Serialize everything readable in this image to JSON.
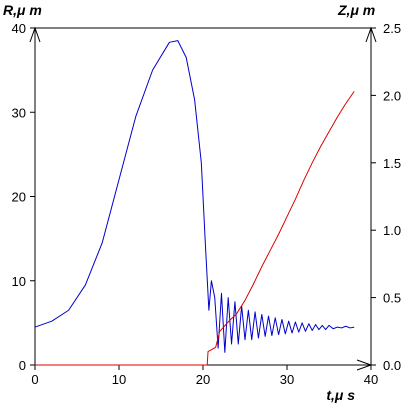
{
  "chart_data": {
    "type": "line",
    "title": "",
    "xlabel": "t,μ s",
    "ylabel_left": "R,μ m",
    "ylabel_right": "Z,μ m",
    "xlim": [
      0,
      40
    ],
    "ylim_left": [
      0,
      40
    ],
    "ylim_right": [
      0,
      2.5
    ],
    "x_ticks": [
      "0",
      "10",
      "20",
      "30",
      "40"
    ],
    "y_left_ticks": [
      "0",
      "10",
      "20",
      "30",
      "40"
    ],
    "y_right_ticks": [
      "0.0",
      "0.5",
      "1.0",
      "1.5",
      "2.0",
      "2.5"
    ],
    "grid": false,
    "legend": "none",
    "series": [
      {
        "color": "#0000cc",
        "axis": "left",
        "x": [
          0,
          2,
          4,
          6,
          8,
          10,
          12,
          14,
          16,
          17,
          18,
          19,
          19.8,
          20.3,
          20.7,
          21.0,
          21.4,
          21.8,
          22.2,
          22.6,
          23.0,
          23.4,
          23.8,
          24.2,
          24.6,
          25.0,
          25.4,
          25.8,
          26.2,
          26.6,
          27.0,
          27.4,
          27.8,
          28.2,
          28.6,
          29.0,
          29.4,
          29.8,
          30.2,
          30.6,
          31.0,
          31.4,
          31.8,
          32.2,
          32.6,
          33.0,
          33.4,
          33.8,
          34.2,
          34.6,
          35.0,
          35.5,
          36.0,
          36.5,
          37.0,
          37.5,
          38.0
        ],
        "y": [
          4.5,
          5.2,
          6.5,
          9.5,
          14.5,
          22,
          29.5,
          35,
          38.3,
          38.5,
          36.5,
          31.5,
          24,
          14,
          6.5,
          10,
          8,
          2,
          8.5,
          1.5,
          8,
          2.5,
          7.5,
          2.5,
          7,
          3,
          6.5,
          3,
          6.3,
          3.2,
          6,
          3.4,
          5.8,
          3.5,
          5.6,
          3.6,
          5.4,
          3.7,
          5.2,
          3.8,
          5.1,
          3.9,
          5,
          4,
          4.9,
          4.1,
          4.8,
          4.2,
          4.7,
          4.2,
          4.7,
          4.3,
          4.5,
          4.4,
          4.6,
          4.4,
          4.5
        ]
      },
      {
        "color": "#dd0000",
        "axis": "right",
        "x": [
          0,
          20.5,
          20.6,
          21.5,
          22,
          23,
          24,
          25,
          26,
          27,
          28,
          29,
          30,
          31,
          32,
          33,
          34,
          35,
          36,
          37,
          38
        ],
        "y": [
          0,
          0,
          0.1,
          0.13,
          0.25,
          0.32,
          0.38,
          0.48,
          0.6,
          0.73,
          0.85,
          0.97,
          1.1,
          1.23,
          1.37,
          1.5,
          1.62,
          1.73,
          1.84,
          1.94,
          2.03
        ]
      }
    ]
  }
}
